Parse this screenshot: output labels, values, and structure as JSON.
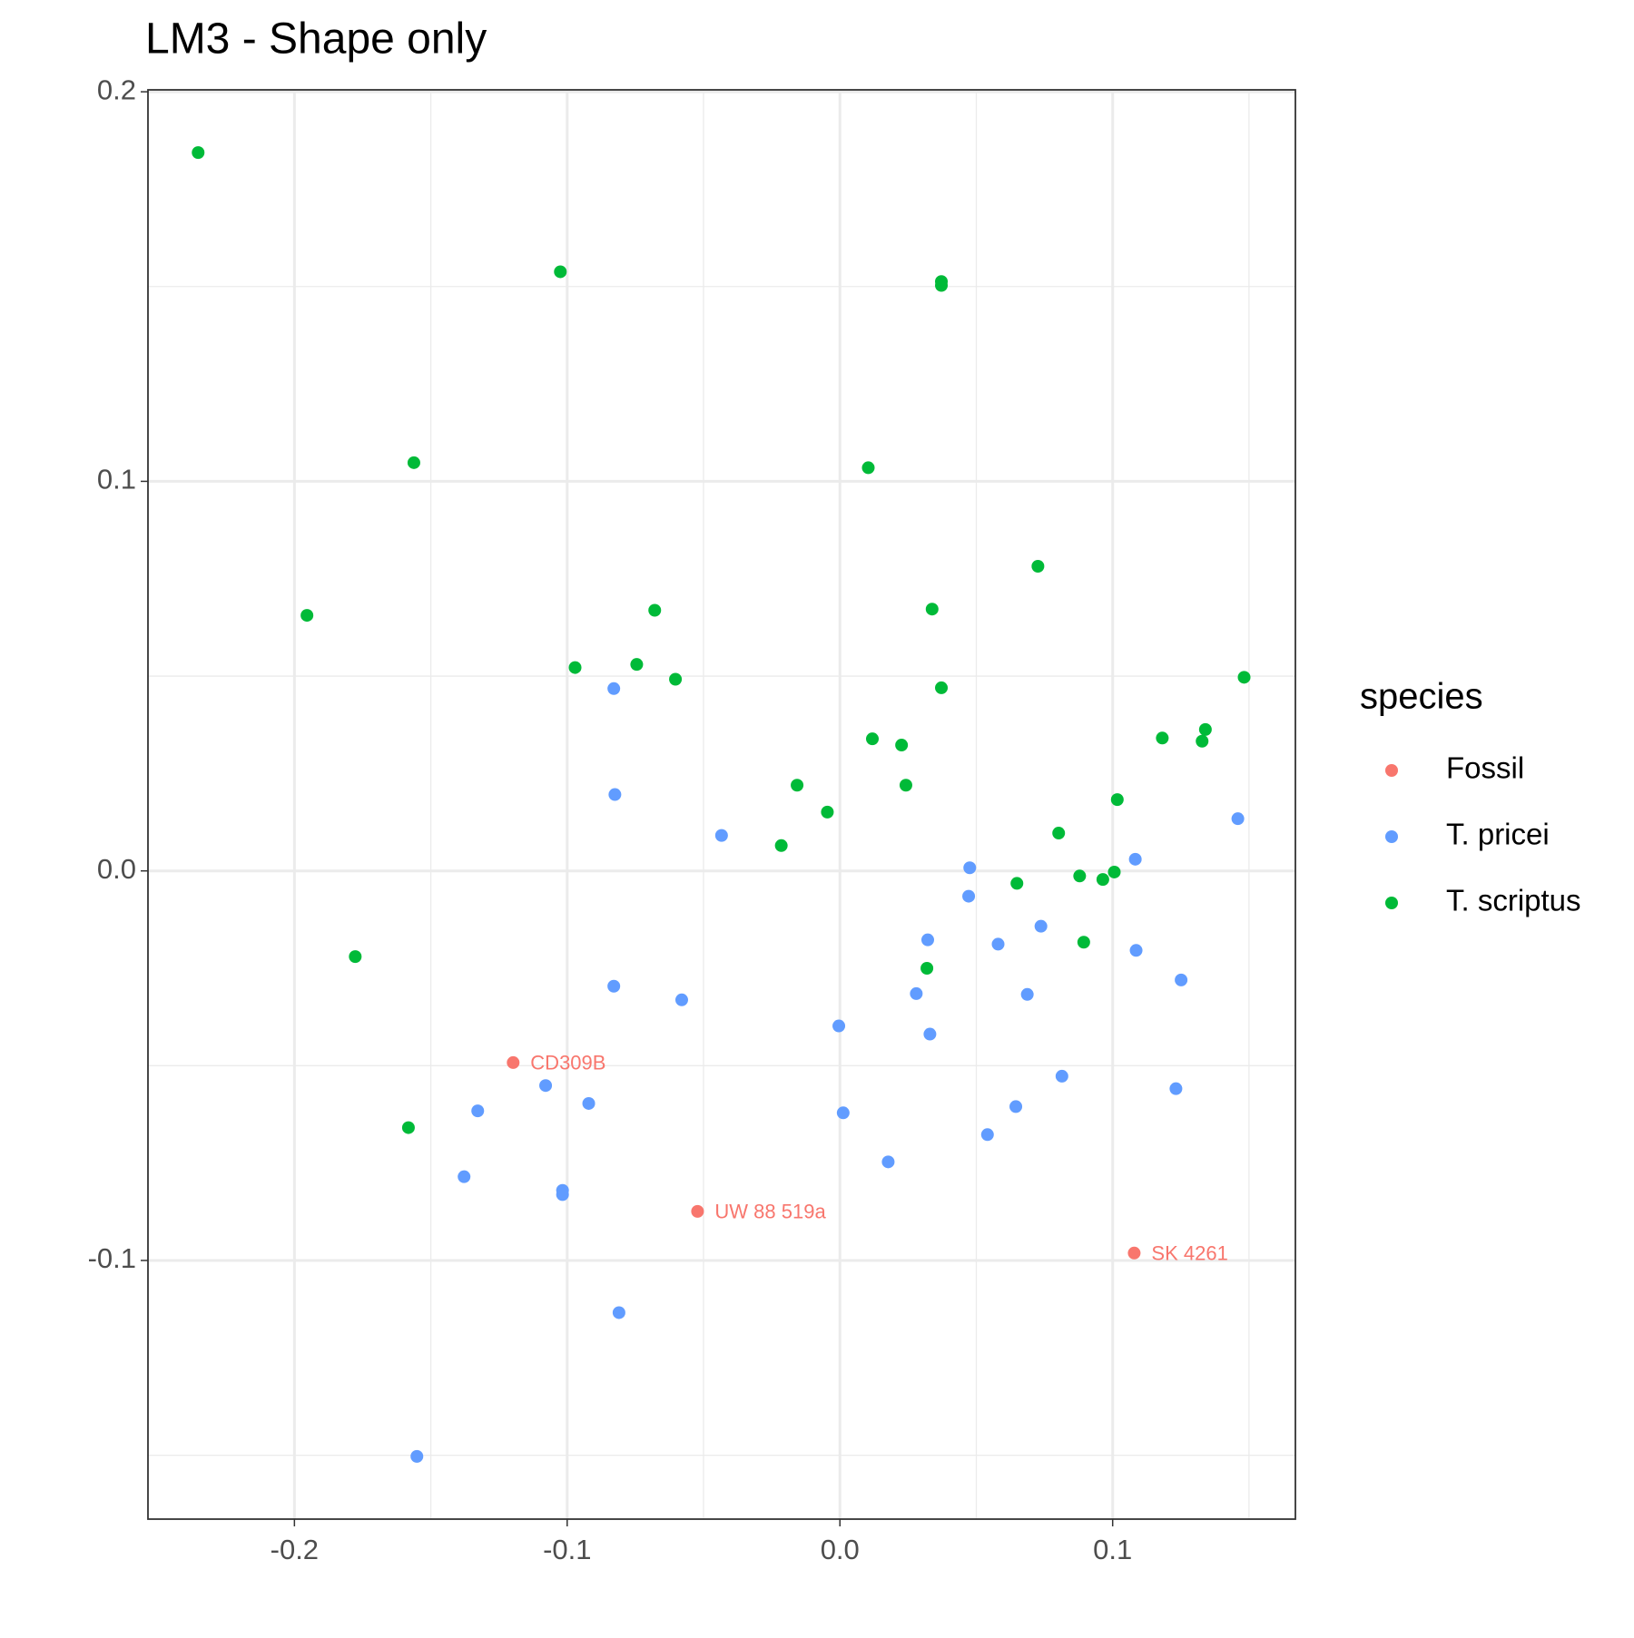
{
  "chart_data": {
    "type": "scatter",
    "title": "LM3 - Shape only",
    "legend_title": "species",
    "legend_position": "right",
    "xlim": [
      -0.2537,
      0.167
    ],
    "ylim": [
      -0.1664,
      0.2005
    ],
    "xticks": [
      -0.2,
      -0.1,
      {
        "value": 0.0,
        "label": "0.0"
      },
      0.1
    ],
    "yticks": [
      -0.1,
      {
        "value": 0.0,
        "label": "0.0"
      },
      0.1,
      0.2
    ],
    "x_minor_grid": [
      -0.15,
      -0.05,
      0.05,
      0.15
    ],
    "y_minor_grid": [
      -0.15,
      -0.05,
      0.05,
      0.15
    ],
    "grid": true,
    "series": [
      {
        "name": "Fossil",
        "color": "#f8766d",
        "x": [
          -0.1198,
          -0.0522,
          0.1079
        ],
        "y": [
          -0.0492,
          -0.0874,
          -0.0981
        ],
        "labels": [
          "CD309B",
          "UW 88 519a",
          "SK 4261"
        ]
      },
      {
        "name": "T. pricei",
        "color": "#619cff",
        "x": [
          -0.0829,
          -0.0825,
          -0.0434,
          0.0476,
          0.0472,
          0.1083,
          0.1459,
          0.0737,
          0.0322,
          0.058,
          0.1086,
          0.1251,
          -0.0829,
          -0.058,
          0.028,
          0.0687,
          -0.0004,
          0.033,
          0.0814,
          0.1232,
          -0.1079,
          -0.0921,
          -0.1328,
          0.0645,
          0.0012,
          0.0541,
          0.0177,
          -0.1378,
          -0.1017,
          -0.1017,
          -0.081,
          -0.1551
        ],
        "y": [
          0.0468,
          0.0196,
          0.0091,
          0.0008,
          -0.0065,
          0.003,
          0.0134,
          -0.0142,
          -0.0177,
          -0.0188,
          -0.0204,
          -0.028,
          -0.0296,
          -0.0331,
          -0.0315,
          -0.0317,
          -0.0398,
          -0.0419,
          -0.0527,
          -0.0559,
          -0.0551,
          -0.0597,
          -0.0616,
          -0.0605,
          -0.0621,
          -0.0677,
          -0.0747,
          -0.0785,
          -0.082,
          -0.0831,
          -0.1134,
          -0.1503
        ]
      },
      {
        "name": "T. scriptus",
        "color": "#00ba38",
        "x": [
          -0.2353,
          -0.1025,
          0.0372,
          0.0372,
          -0.1562,
          0.0104,
          -0.1954,
          0.0726,
          -0.0679,
          0.0338,
          -0.0971,
          -0.0745,
          -0.0603,
          0.0372,
          0.1482,
          0.134,
          0.1182,
          0.1328,
          0.0119,
          0.0226,
          -0.0157,
          0.0242,
          0.1017,
          -0.0046,
          -0.0215,
          0.0802,
          0.0879,
          0.1006,
          0.0964,
          0.0649,
          0.0894,
          0.0319,
          -0.1777,
          -0.1582
        ],
        "y": [
          0.1844,
          0.1538,
          0.1513,
          0.1503,
          0.1048,
          0.1035,
          0.0656,
          0.0782,
          0.0669,
          0.0672,
          0.0522,
          0.053,
          0.0492,
          0.047,
          0.0497,
          0.0363,
          0.0341,
          0.0333,
          0.0339,
          0.0323,
          0.022,
          0.022,
          0.0183,
          0.0151,
          0.0065,
          0.0097,
          -0.0013,
          -0.0003,
          -0.0022,
          -0.0032,
          -0.0183,
          -0.025,
          -0.022,
          -0.0659
        ]
      }
    ]
  }
}
